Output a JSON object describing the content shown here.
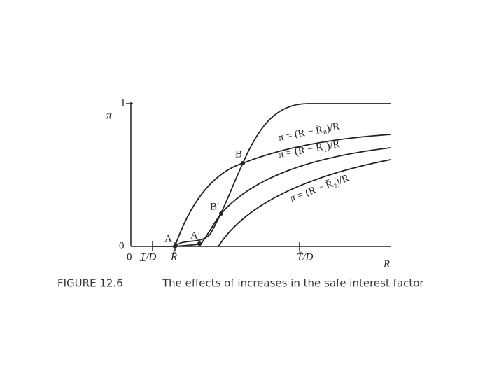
{
  "axes": {
    "y_top_label": "1",
    "y_label": "π",
    "y_zero": "0",
    "x_zero": "0",
    "x_ticks": [
      "T̲/D",
      "R̄",
      "T̄/D"
    ],
    "x_label": "R"
  },
  "points": [
    "A",
    "A′",
    "B",
    "B′"
  ],
  "curves": [
    "π = (R − R̄₀)/R",
    "π = (R − R̄₁)/R",
    "π = (R − R̄₂)/R"
  ],
  "caption": {
    "number": "FIGURE 12.6",
    "text": "The effects of increases in the safe interest factor"
  }
}
